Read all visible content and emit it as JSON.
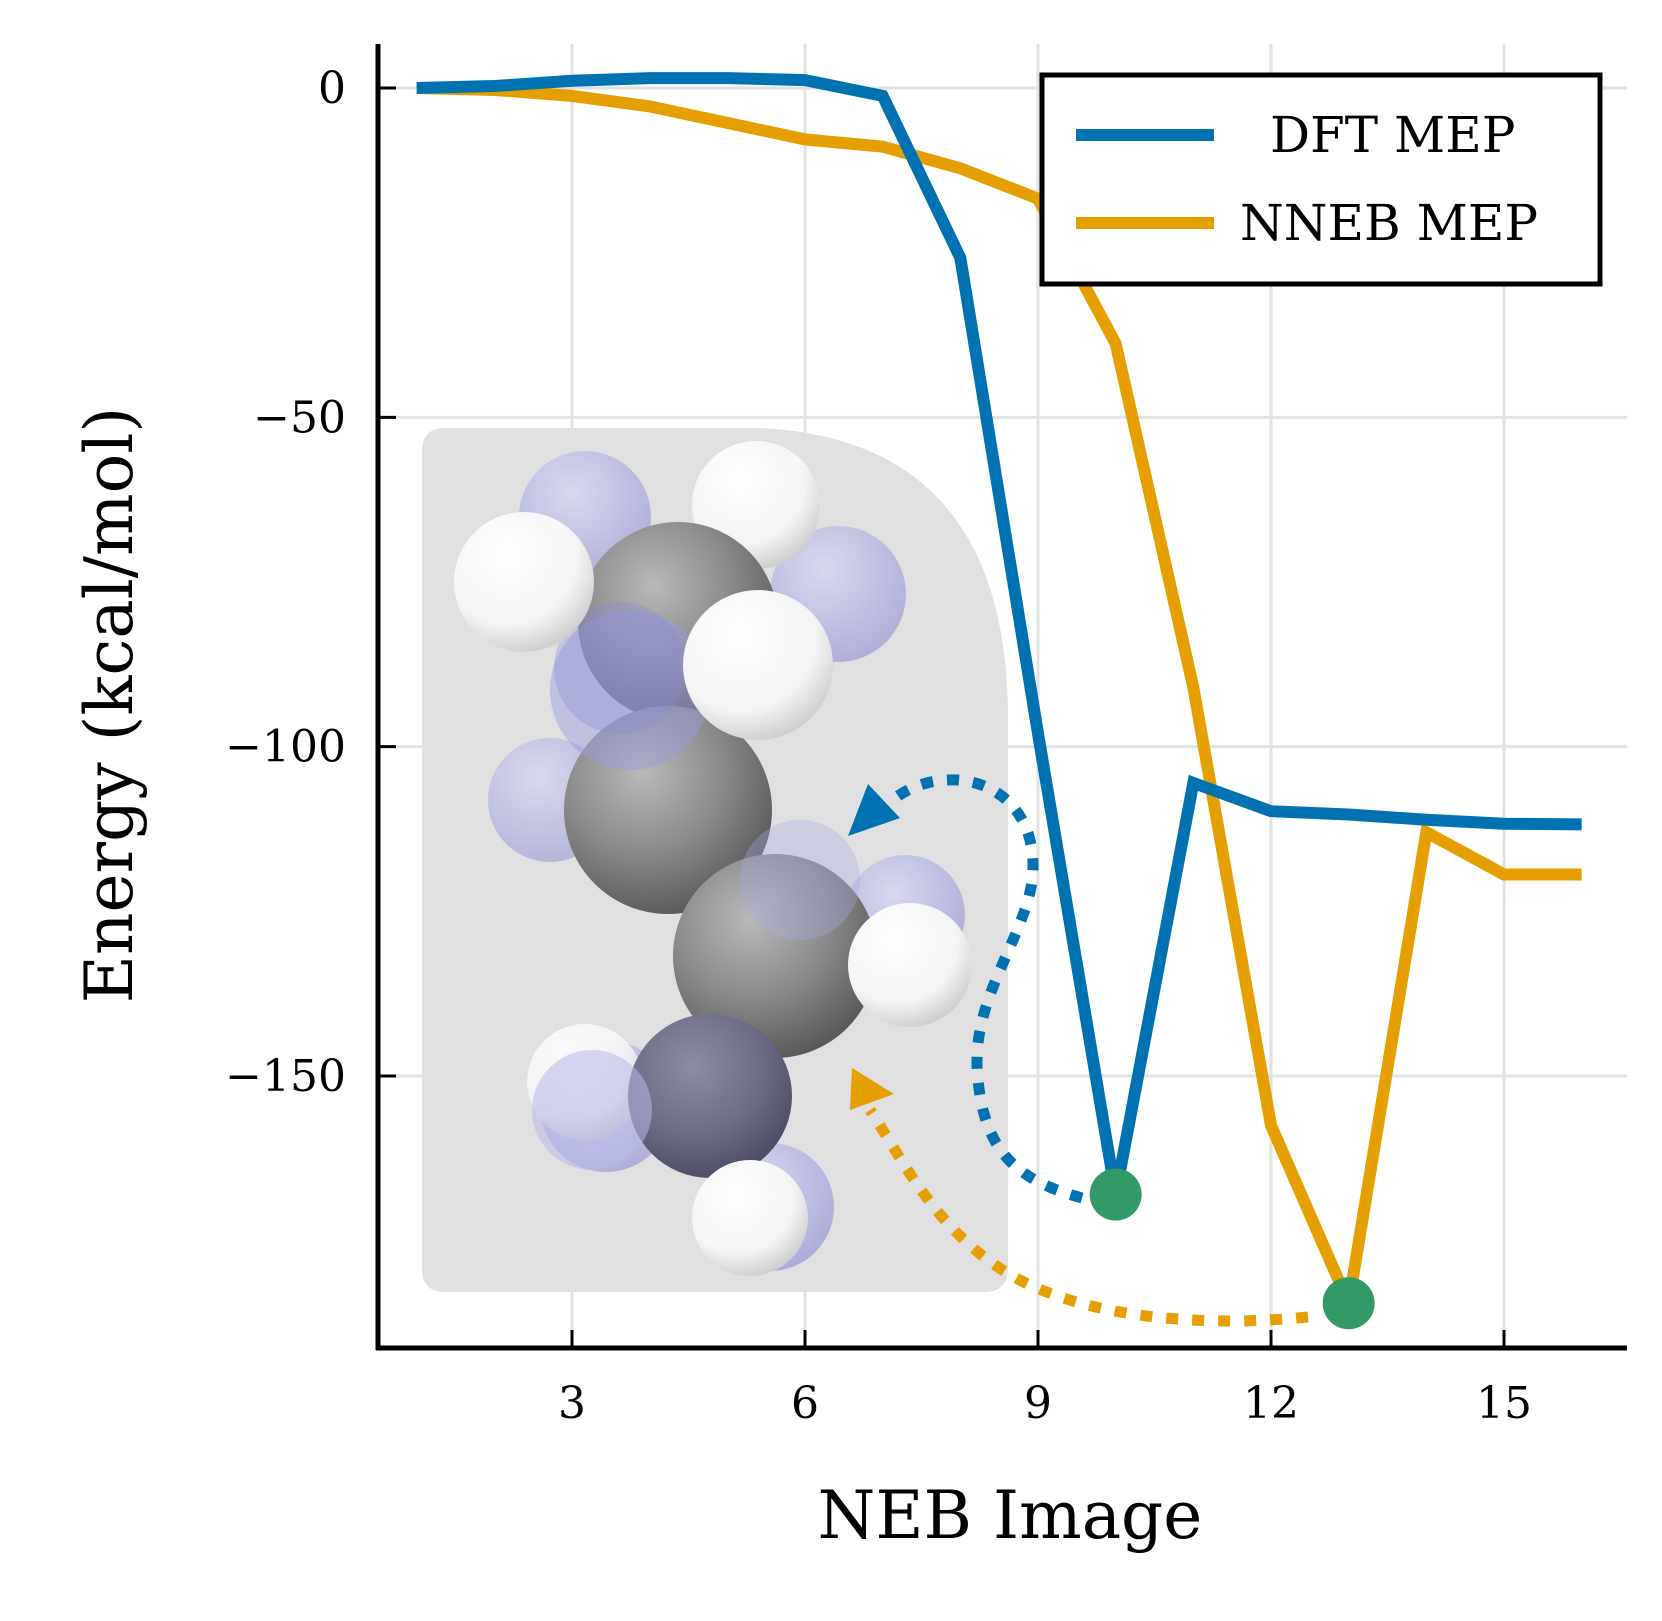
{
  "chart_data": {
    "type": "line",
    "title": "",
    "xlabel": "NEB Image",
    "ylabel": "Energy (kcal/mol)",
    "xlim": [
      0.5,
      16.5
    ],
    "ylim": [
      -191,
      6
    ],
    "xticks": [
      3,
      6,
      9,
      12,
      15
    ],
    "xtick_labels": [
      "3",
      "6",
      "9",
      "12",
      "15"
    ],
    "yticks": [
      0,
      -50,
      -100,
      -150
    ],
    "ytick_labels": [
      "0",
      "−50",
      "−100",
      "−150"
    ],
    "grid": true,
    "legend_position": "top-right",
    "x": [
      1,
      2,
      3,
      4,
      5,
      6,
      7,
      8,
      9,
      10,
      11,
      12,
      13,
      14,
      15,
      16
    ],
    "series": [
      {
        "name": "DFT MEP",
        "color": "#0072b2",
        "values": [
          0,
          0.3,
          1.1,
          1.5,
          1.5,
          1.2,
          -1.2,
          -25.8,
          -98,
          -168,
          -105.5,
          -109.8,
          -110.3,
          -111.1,
          -111.7,
          -111.8
        ]
      },
      {
        "name": "NNEB MEP",
        "color": "#e69f00",
        "values": [
          0,
          -0.3,
          -1.2,
          -2.8,
          -5.3,
          -7.8,
          -8.9,
          -12.2,
          -16.8,
          -38.8,
          -91,
          -157.5,
          -184.5,
          -113,
          -119.4,
          -119.4
        ]
      }
    ],
    "highlight_points": [
      {
        "series": "DFT MEP",
        "x": 10,
        "y": -168,
        "color": "#339966"
      },
      {
        "series": "NNEB MEP",
        "x": 13,
        "y": -184.5,
        "color": "#339966"
      }
    ],
    "arrow_targets": [
      {
        "series": "DFT MEP",
        "to_x": 6.5,
        "to_y": -112
      },
      {
        "series": "NNEB MEP",
        "to_x": 6.5,
        "to_y": -150
      }
    ],
    "inset": "space-filling molecular structure rendering (gray carbon, white hydrogen, translucent blue overlay) on light gray panel"
  },
  "colors": {
    "dft": "#0072b2",
    "nneb": "#e69f00",
    "marker": "#339966",
    "grid": "#e2e2e2",
    "inset_bg": "#e0e0e0"
  }
}
